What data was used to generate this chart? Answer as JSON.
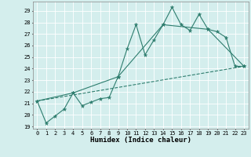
{
  "title": "",
  "xlabel": "Humidex (Indice chaleur)",
  "bg_color": "#d4eeed",
  "line_color": "#2e7d6e",
  "xlim": [
    -0.5,
    23.5
  ],
  "ylim": [
    18.8,
    29.8
  ],
  "yticks": [
    19,
    20,
    21,
    22,
    23,
    24,
    25,
    26,
    27,
    28,
    29
  ],
  "xticks": [
    0,
    1,
    2,
    3,
    4,
    5,
    6,
    7,
    8,
    9,
    10,
    11,
    12,
    13,
    14,
    15,
    16,
    17,
    18,
    19,
    20,
    21,
    22,
    23
  ],
  "series1_x": [
    0,
    1,
    2,
    3,
    4,
    5,
    6,
    7,
    8,
    9,
    10,
    11,
    12,
    13,
    14,
    15,
    16,
    17,
    18,
    19,
    20,
    21,
    22,
    23
  ],
  "series1_y": [
    21.2,
    19.3,
    19.9,
    20.5,
    21.9,
    20.8,
    21.1,
    21.4,
    21.5,
    23.3,
    25.7,
    27.8,
    25.2,
    26.5,
    27.8,
    29.3,
    27.8,
    27.3,
    28.7,
    27.4,
    27.2,
    26.7,
    24.2,
    24.2
  ],
  "series2_x": [
    0,
    4,
    9,
    14,
    19,
    23
  ],
  "series2_y": [
    21.2,
    21.9,
    23.3,
    27.8,
    27.4,
    24.2
  ],
  "series3_x": [
    0,
    23
  ],
  "series3_y": [
    21.2,
    24.2
  ],
  "grid_color": "#f0fafa",
  "grid_major_color": "#ccdddd",
  "marker_size": 3.5,
  "linewidth": 0.8
}
